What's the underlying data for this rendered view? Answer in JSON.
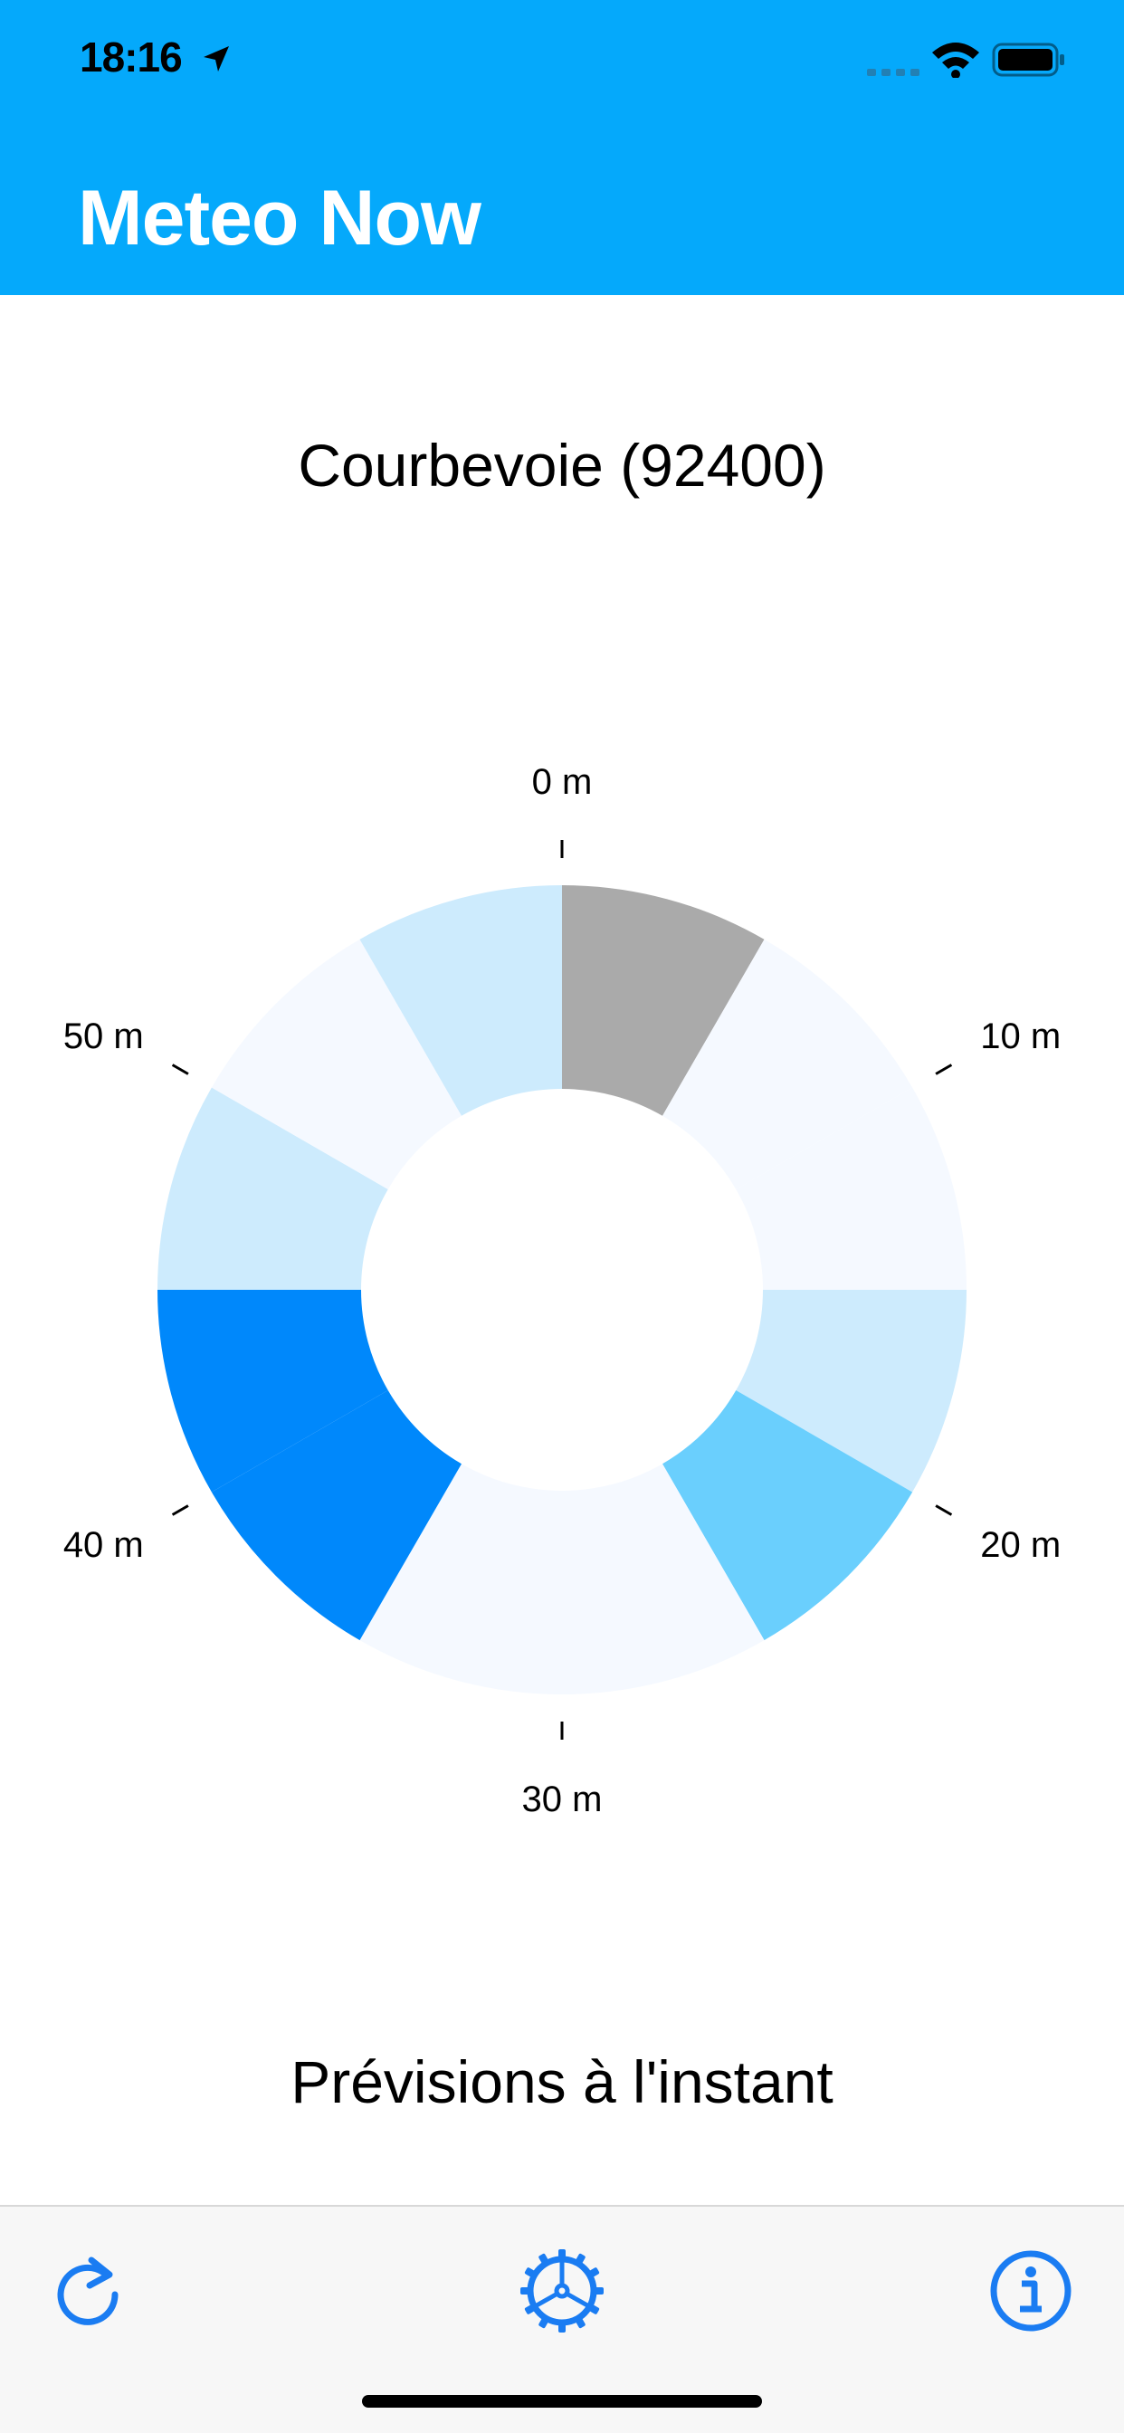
{
  "status_bar": {
    "time": "18:16"
  },
  "nav": {
    "title": "Meteo Now"
  },
  "location": {
    "name": "Courbevoie (92400)"
  },
  "chart_data": {
    "type": "pie",
    "variant": "donut",
    "tick_labels": [
      "0 m",
      "10 m",
      "20 m",
      "30 m",
      "40 m",
      "50 m"
    ],
    "segments": [
      {
        "minute": 0,
        "color": "#aaaaaa"
      },
      {
        "minute": 5,
        "color": "#f5f9ff"
      },
      {
        "minute": 10,
        "color": "#f5f9ff"
      },
      {
        "minute": 15,
        "color": "#cdebfd"
      },
      {
        "minute": 20,
        "color": "#6acffd"
      },
      {
        "minute": 25,
        "color": "#f5f9ff"
      },
      {
        "minute": 30,
        "color": "#f5f9ff"
      },
      {
        "minute": 35,
        "color": "#0088fb"
      },
      {
        "minute": 40,
        "color": "#0088fb"
      },
      {
        "minute": 45,
        "color": "#cdebfd"
      },
      {
        "minute": 50,
        "color": "#f5f9ff"
      },
      {
        "minute": 55,
        "color": "#cdebfd"
      }
    ]
  },
  "section": {
    "title": "Prévisions à l'instant"
  },
  "toolbar": {
    "refresh_icon": "refresh-icon",
    "settings_icon": "gear-icon",
    "info_icon": "info-icon",
    "accent_color": "#1a7cf2"
  }
}
